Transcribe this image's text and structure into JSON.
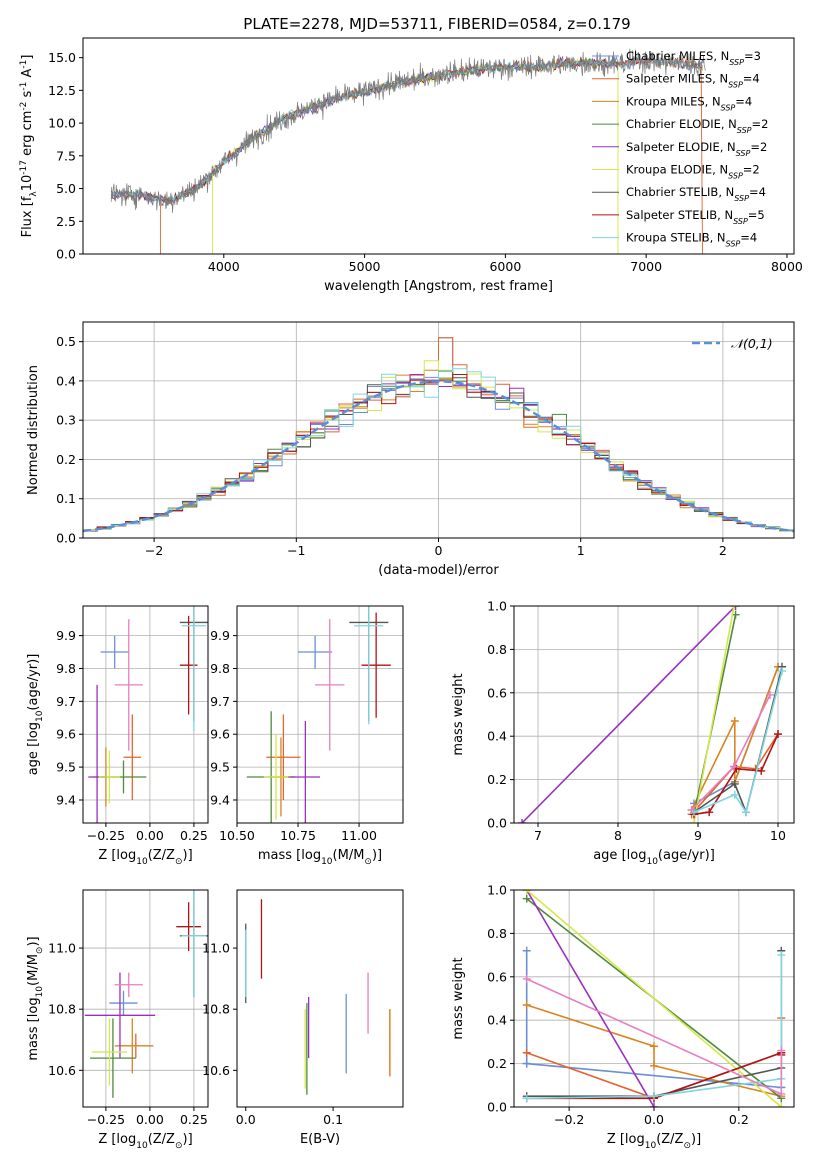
{
  "figure": {
    "title": "PLATE=2278, MJD=53711, FIBERID=0584, z=0.179",
    "series_labels": [
      "Chabrier MILES, N$_{SSP}$=3",
      "Salpeter MILES, N$_{SSP}$=4",
      "Kroupa MILES, N$_{SSP}$=4",
      "Chabrier ELODIE, N$_{SSP}$=2",
      "Salpeter ELODIE, N$_{SSP}$=2",
      "Kroupa ELODIE, N$_{SSP}$=2",
      "Chabrier STELIB, N$_{SSP}$=4",
      "Salpeter STELIB, N$_{SSP}$=5",
      "Kroupa STELIB, N$_{SSP}$=4"
    ],
    "legend_display": [
      {
        "name": "Chabrier MILES",
        "n": "3"
      },
      {
        "name": "Salpeter MILES",
        "n": "4"
      },
      {
        "name": "Kroupa MILES",
        "n": "4"
      },
      {
        "name": "Chabrier ELODIE",
        "n": "2"
      },
      {
        "name": "Salpeter ELODIE",
        "n": "2"
      },
      {
        "name": "Kroupa ELODIE",
        "n": "2"
      },
      {
        "name": "Chabrier STELIB",
        "n": "4"
      },
      {
        "name": "Salpeter STELIB",
        "n": "5"
      },
      {
        "name": "Kroupa STELIB",
        "n": "4"
      }
    ],
    "series_colors": [
      "#6b8fd6",
      "#e4632e",
      "#d9841f",
      "#4f8a3e",
      "#9b30c0",
      "#d3e84a",
      "#555555",
      "#b01515",
      "#7fd6e0"
    ]
  },
  "chart_data": [
    {
      "type": "line",
      "panel": "spectrum",
      "xlabel": "wavelength [Angstrom, rest frame]",
      "ylabel": "Flux [f$_\\lambda$10$^{-17}$ erg cm$^{-2}$ s$^{-1}$ A$^{-1}$]",
      "xlim": [
        3000,
        8050
      ],
      "ylim": [
        0,
        16.5
      ],
      "xticks": [
        4000,
        5000,
        6000,
        7000,
        8000
      ],
      "yticks": [
        0.0,
        2.5,
        5.0,
        7.5,
        10.0,
        12.5,
        15.0
      ],
      "grid": false,
      "legend_loc": "upper-right",
      "spectrum_anchor": {
        "wavelength": [
          3200,
          3400,
          3600,
          3800,
          4000,
          4200,
          4400,
          4600,
          4800,
          5000,
          5200,
          5400,
          5600,
          5800,
          6000,
          6200,
          6400,
          6600,
          6800,
          7000,
          7200,
          7400
        ],
        "flux": [
          4.5,
          4.6,
          4.0,
          5.0,
          7.0,
          8.8,
          10.2,
          11.1,
          11.9,
          12.4,
          13.0,
          13.4,
          13.8,
          14.1,
          14.3,
          14.3,
          14.5,
          14.6,
          14.5,
          14.8,
          14.6,
          14.4
        ]
      }
    },
    {
      "type": "histogram",
      "panel": "residuals",
      "xlabel": "(data-model)/error",
      "ylabel": "Normed distribution",
      "xlim": [
        -2.5,
        2.5
      ],
      "ylim": [
        0,
        0.55
      ],
      "xticks": [
        -2,
        -1,
        0,
        1,
        2
      ],
      "yticks": [
        0.0,
        0.1,
        0.2,
        0.3,
        0.4,
        0.5
      ],
      "grid": true,
      "legend": [
        "$\\mathcal{N}(0,1)$"
      ],
      "legend_loc": "upper-right"
    },
    {
      "type": "errorbar",
      "panel": "Z-age",
      "xlabel": "Z [log$_{10}$(Z/Z$_\\odot$)]",
      "ylabel": "age  [log$_{10}$(age/yr)]",
      "xlim": [
        -0.38,
        0.33
      ],
      "ylim": [
        9.33,
        9.99
      ],
      "xticks": [
        -0.25,
        0.0,
        0.25
      ],
      "yticks": [
        9.4,
        9.5,
        9.6,
        9.7,
        9.8,
        9.9
      ],
      "grid": true,
      "points": [
        {
          "series": 0,
          "x": -0.2,
          "y": 9.85,
          "xerr": 0.08,
          "yerr": 0.05
        },
        {
          "series": 1,
          "x": -0.1,
          "y": 9.53,
          "xerr": 0.05,
          "yerr": 0.13
        },
        {
          "series": 2,
          "x": -0.25,
          "y": 9.47,
          "xerr": 0.08,
          "yerr": 0.09
        },
        {
          "series": 3,
          "x": -0.15,
          "y": 9.47,
          "xerr": 0.13,
          "yerr": 0.05
        },
        {
          "series": 4,
          "x": -0.3,
          "y": 9.47,
          "xerr": 0.05,
          "yerr": 0.28
        },
        {
          "series": 5,
          "x": -0.23,
          "y": 9.47,
          "xerr": 0.06,
          "yerr": 0.08
        },
        {
          "series": 6,
          "x": 0.25,
          "y": 9.94,
          "xerr": 0.08,
          "yerr": 0.3
        },
        {
          "series": 7,
          "x": 0.22,
          "y": 9.81,
          "xerr": 0.05,
          "yerr": 0.15
        },
        {
          "series": 8,
          "x": 0.25,
          "y": 9.93,
          "xerr": 0.07,
          "yerr": 0.32
        },
        {
          "series": "pink",
          "x": -0.12,
          "y": 9.75,
          "xerr": 0.08,
          "yerr": 0.2
        }
      ]
    },
    {
      "type": "errorbar",
      "panel": "mass-age",
      "xlabel": "mass [log$_{10}$(M/M$_\\odot$)]",
      "ylabel": "",
      "xlim": [
        10.5,
        11.18
      ],
      "ylim": [
        9.33,
        9.99
      ],
      "xticks": [
        10.5,
        10.75,
        11.0
      ],
      "yticks": [
        9.4,
        9.5,
        9.6,
        9.7,
        9.8,
        9.9
      ],
      "grid": true,
      "points": [
        {
          "series": 0,
          "x": 10.82,
          "y": 9.85,
          "xerr": 0.07,
          "yerr": 0.05
        },
        {
          "series": 1,
          "x": 10.69,
          "y": 9.53,
          "xerr": 0.07,
          "yerr": 0.13
        },
        {
          "series": 2,
          "x": 10.68,
          "y": 9.47,
          "xerr": 0.05,
          "yerr": 0.12
        },
        {
          "series": 3,
          "x": 10.64,
          "y": 9.47,
          "xerr": 0.1,
          "yerr": 0.2
        },
        {
          "series": 4,
          "x": 10.78,
          "y": 9.47,
          "xerr": 0.06,
          "yerr": 0.17
        },
        {
          "series": 5,
          "x": 10.66,
          "y": 9.47,
          "xerr": 0.05,
          "yerr": 0.13
        },
        {
          "series": 6,
          "x": 11.04,
          "y": 9.94,
          "xerr": 0.08,
          "yerr": 0.3
        },
        {
          "series": 7,
          "x": 11.07,
          "y": 9.81,
          "xerr": 0.06,
          "yerr": 0.16
        },
        {
          "series": 8,
          "x": 11.04,
          "y": 9.93,
          "xerr": 0.06,
          "yerr": 0.3
        },
        {
          "series": "pink",
          "x": 10.88,
          "y": 9.75,
          "xerr": 0.06,
          "yerr": 0.2
        }
      ]
    },
    {
      "type": "line",
      "panel": "age-weight",
      "xlabel": "age  [log$_{10}$(age/yr)]",
      "ylabel": "mass weight",
      "xlim": [
        6.7,
        10.2
      ],
      "ylim": [
        0,
        1.0
      ],
      "xticks": [
        7,
        8,
        9,
        10
      ],
      "yticks": [
        0.0,
        0.2,
        0.4,
        0.6,
        0.8,
        1.0
      ],
      "grid": true,
      "series": [
        {
          "series": 0,
          "x": [
            8.95,
            9.46,
            10.0
          ],
          "y": [
            0.09,
            0.19,
            0.72
          ]
        },
        {
          "series": 1,
          "x": [
            8.92,
            9.45,
            9.72,
            10.0
          ],
          "y": [
            0.04,
            0.26,
            0.25,
            0.41
          ]
        },
        {
          "series": 2,
          "x": [
            8.92,
            9.46,
            9.46,
            10.0
          ],
          "y": [
            0.06,
            0.47,
            0.19,
            0.72
          ]
        },
        {
          "series": 3,
          "x": [
            8.95,
            9.47
          ],
          "y": [
            0.04,
            0.96
          ]
        },
        {
          "series": 4,
          "x": [
            6.8,
            9.47
          ],
          "y": [
            0.0,
            1.0
          ]
        },
        {
          "series": 5,
          "x": [
            8.95,
            9.45
          ],
          "y": [
            0.0,
            1.0
          ]
        },
        {
          "series": 6,
          "x": [
            8.95,
            9.46,
            9.6,
            10.05
          ],
          "y": [
            0.05,
            0.18,
            0.05,
            0.72
          ]
        },
        {
          "series": 7,
          "x": [
            8.95,
            9.14,
            9.48,
            9.79,
            10.0
          ],
          "y": [
            0.04,
            0.05,
            0.25,
            0.24,
            0.41
          ]
        },
        {
          "series": 8,
          "x": [
            8.95,
            9.46,
            9.6,
            10.05
          ],
          "y": [
            0.05,
            0.13,
            0.05,
            0.7
          ]
        },
        {
          "series": "pink",
          "x": [
            8.92,
            9.45,
            9.9
          ],
          "y": [
            0.06,
            0.26,
            0.59
          ]
        }
      ]
    },
    {
      "type": "errorbar",
      "panel": "Z-mass",
      "xlabel": "Z [log$_{10}$(Z/Z$_\\odot$)]",
      "ylabel": "mass [log$_{10}$(M/M$_\\odot$)]",
      "xlim": [
        -0.38,
        0.33
      ],
      "ylim": [
        10.48,
        11.19
      ],
      "xticks": [
        -0.25,
        0.0,
        0.25
      ],
      "yticks": [
        10.6,
        10.8,
        11.0
      ],
      "grid": true,
      "points": [
        {
          "series": 0,
          "x": -0.15,
          "y": 10.82,
          "xerr": 0.08,
          "yerr": 0.04
        },
        {
          "series": 1,
          "x": -0.08,
          "y": 10.68,
          "xerr": 0.1,
          "yerr": 0.04
        },
        {
          "series": 2,
          "x": -0.1,
          "y": 10.68,
          "xerr": 0.1,
          "yerr": 0.09
        },
        {
          "series": 3,
          "x": -0.21,
          "y": 10.64,
          "xerr": 0.13,
          "yerr": 0.13
        },
        {
          "series": 4,
          "x": -0.17,
          "y": 10.78,
          "xerr": 0.2,
          "yerr": 0.14
        },
        {
          "series": 5,
          "x": -0.23,
          "y": 10.66,
          "xerr": 0.1,
          "yerr": 0.11
        },
        {
          "series": 6,
          "x": 0.25,
          "y": 11.04,
          "xerr": 0.08,
          "yerr": 0.2
        },
        {
          "series": 7,
          "x": 0.22,
          "y": 11.07,
          "xerr": 0.07,
          "yerr": 0.08
        },
        {
          "series": 8,
          "x": 0.25,
          "y": 11.04,
          "xerr": 0.07,
          "yerr": 0.2
        },
        {
          "series": "pink",
          "x": -0.12,
          "y": 10.88,
          "xerr": 0.08,
          "yerr": 0.04
        }
      ]
    },
    {
      "type": "errorbar",
      "panel": "EBV-mass",
      "xlabel": "E(B-V)",
      "ylabel": "",
      "xlim": [
        -0.01,
        0.18
      ],
      "ylim": [
        10.48,
        11.19
      ],
      "xticks": [
        0.0,
        0.1
      ],
      "yticks": [
        10.6,
        10.8,
        11.0
      ],
      "grid": false,
      "points": [
        {
          "series": 0,
          "x": 0.115,
          "y": 10.72,
          "yerr": 0.13
        },
        {
          "series": 1,
          "x": 0.165,
          "y": 10.69,
          "yerr": 0.11
        },
        {
          "series": 2,
          "x": 0.165,
          "y": 10.7,
          "yerr": 0.1
        },
        {
          "series": 3,
          "x": 0.07,
          "y": 10.67,
          "yerr": 0.15
        },
        {
          "series": 4,
          "x": 0.072,
          "y": 10.74,
          "yerr": 0.1
        },
        {
          "series": 5,
          "x": 0.068,
          "y": 10.67,
          "yerr": 0.13
        },
        {
          "series": 6,
          "x": 0.0,
          "y": 10.95,
          "yerr": 0.13
        },
        {
          "series": 7,
          "x": 0.018,
          "y": 11.03,
          "yerr": 0.13
        },
        {
          "series": 8,
          "x": 0.0,
          "y": 10.95,
          "yerr": 0.11
        },
        {
          "series": "pink",
          "x": 0.14,
          "y": 10.82,
          "yerr": 0.1
        }
      ]
    },
    {
      "type": "line",
      "panel": "Z-weight",
      "xlabel": "Z [log$_{10}$(Z/Z$_\\odot$)]",
      "ylabel": "mass weight",
      "xlim": [
        -0.33,
        0.33
      ],
      "ylim": [
        0,
        1.0
      ],
      "xticks": [
        -0.2,
        0.0,
        0.2
      ],
      "yticks": [
        0.0,
        0.2,
        0.4,
        0.6,
        0.8,
        1.0
      ],
      "grid": true,
      "series": [
        {
          "series": 0,
          "x": [
            -0.3,
            -0.3,
            -0.3,
            0.3,
            0.3
          ],
          "y": [
            0.72,
            0.2,
            0.2,
            0.09,
            0.09
          ]
        },
        {
          "series": 1,
          "x": [
            -0.3,
            0.0,
            0.3,
            0.3
          ],
          "y": [
            0.25,
            0.04,
            0.25,
            0.41
          ]
        },
        {
          "series": 2,
          "x": [
            -0.3,
            0.0,
            0.0,
            0.3
          ],
          "y": [
            0.47,
            0.28,
            0.19,
            0.05
          ]
        },
        {
          "series": 3,
          "x": [
            -0.3,
            0.3
          ],
          "y": [
            0.96,
            0.04
          ]
        },
        {
          "series": 4,
          "x": [
            -0.3,
            0.0
          ],
          "y": [
            1.0,
            0.0
          ]
        },
        {
          "series": 5,
          "x": [
            -0.3,
            0.3
          ],
          "y": [
            1.0,
            0.0
          ]
        },
        {
          "series": 6,
          "x": [
            -0.3,
            0.0,
            0.3,
            0.3
          ],
          "y": [
            0.05,
            0.05,
            0.18,
            0.72
          ]
        },
        {
          "series": 7,
          "x": [
            -0.3,
            0.0,
            0.3,
            0.3
          ],
          "y": [
            0.04,
            0.04,
            0.25,
            0.24
          ]
        },
        {
          "series": 8,
          "x": [
            -0.3,
            0.0,
            0.3,
            0.3
          ],
          "y": [
            0.04,
            0.05,
            0.13,
            0.7
          ]
        },
        {
          "series": "pink",
          "x": [
            -0.3,
            0.3,
            0.3
          ],
          "y": [
            0.59,
            0.06,
            0.26
          ]
        }
      ]
    }
  ]
}
